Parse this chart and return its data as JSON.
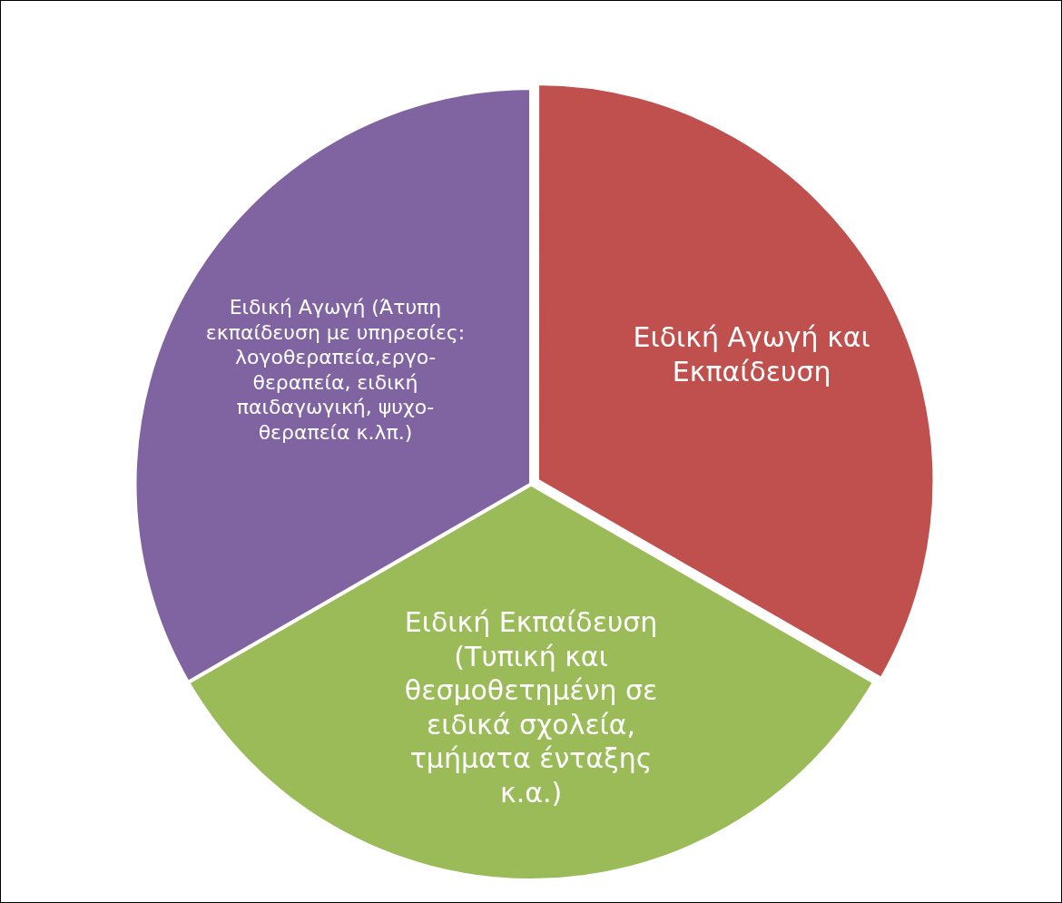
{
  "chart_data": {
    "type": "pie",
    "categories": [
      "Ειδική Αγωγή και Εκπαίδευση",
      "Ειδική Εκπαίδευση (Τυπική και θεσμοθετημένη σε ειδικά σχολεία, τμήματα ένταξης κ.α.)",
      "Ειδική Αγωγή (Άτυπη εκπαίδευση με υπηρεσίες: λογοθεραπεία,εργο-θεραπεία, ειδική παιδαγωγική, ψυχο-θεραπεία κ.λπ.)"
    ],
    "values": [
      33.33,
      33.33,
      33.34
    ],
    "colors": [
      "#c0504d",
      "#9bbb59",
      "#8064a2"
    ],
    "data_labels": false,
    "legend": false
  }
}
